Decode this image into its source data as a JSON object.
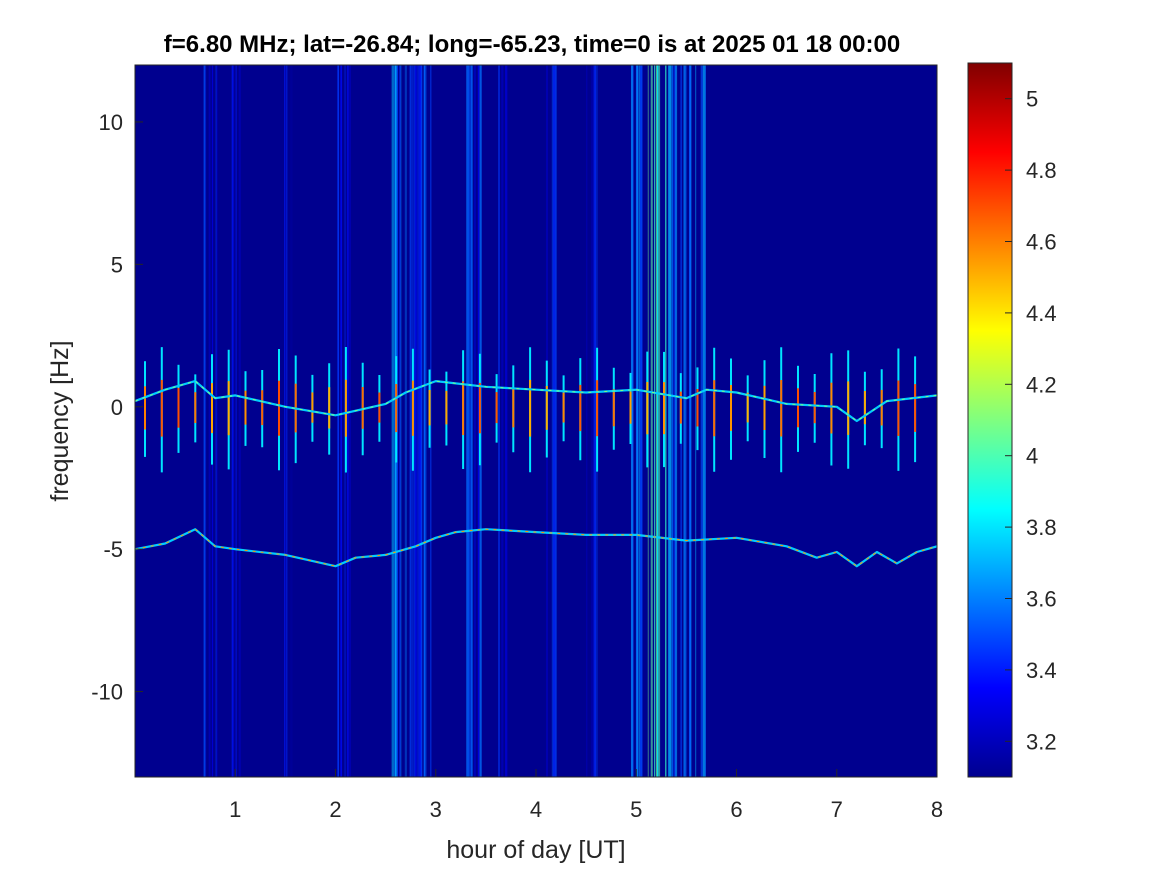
{
  "chart_data": {
    "type": "heatmap",
    "title": "f=6.80 MHz;  lat=-26.84; long=-65.23, time=0 is at 2025 01 18 00:00",
    "xlabel": "hour of day [UT]",
    "ylabel": "frequency [Hz]",
    "xlim": [
      0,
      8
    ],
    "ylim": [
      -13,
      12
    ],
    "x_ticks": [
      1,
      2,
      3,
      4,
      5,
      6,
      7,
      8
    ],
    "x_tick_labels": [
      "1",
      "2",
      "3",
      "4",
      "5",
      "6",
      "7",
      "8"
    ],
    "y_ticks": [
      10,
      5,
      0,
      -5,
      -10
    ],
    "y_tick_labels": [
      "10",
      "5",
      "0",
      "-5",
      "-10"
    ],
    "colorbar": {
      "colormap": "jet",
      "clim": [
        3.1,
        5.1
      ],
      "ticks": [
        5,
        4.8,
        4.6,
        4.4,
        4.2,
        4,
        3.8,
        3.6,
        3.4,
        3.2
      ],
      "tick_labels": [
        "5",
        "4.8",
        "4.6",
        "4.4",
        "4.2",
        "4",
        "3.8",
        "3.6",
        "3.4",
        "3.2"
      ]
    },
    "background_color": "#00008f",
    "noise_bands_hours": [
      {
        "start": 0.68,
        "end": 0.82,
        "level": 3.35
      },
      {
        "start": 0.95,
        "end": 1.05,
        "level": 3.3
      },
      {
        "start": 1.45,
        "end": 1.55,
        "level": 3.3
      },
      {
        "start": 2.0,
        "end": 2.15,
        "level": 3.35
      },
      {
        "start": 2.55,
        "end": 2.72,
        "level": 3.55
      },
      {
        "start": 2.72,
        "end": 3.0,
        "level": 3.45
      },
      {
        "start": 3.3,
        "end": 3.45,
        "level": 3.4
      },
      {
        "start": 3.6,
        "end": 3.7,
        "level": 3.35
      },
      {
        "start": 4.1,
        "end": 4.2,
        "level": 3.35
      },
      {
        "start": 4.5,
        "end": 4.6,
        "level": 3.35
      },
      {
        "start": 4.9,
        "end": 5.1,
        "level": 3.55
      },
      {
        "start": 5.1,
        "end": 5.3,
        "level": 3.9
      },
      {
        "start": 5.3,
        "end": 5.7,
        "level": 3.55
      }
    ],
    "doppler_traces": [
      {
        "x": [
          0,
          0.3,
          0.6,
          0.8,
          1.0,
          1.5,
          2.0,
          2.5,
          2.7,
          3.0,
          3.5,
          4.0,
          4.5,
          5.0,
          5.5,
          5.7,
          6.0,
          6.5,
          7.0,
          7.2,
          7.5,
          8.0
        ],
        "y": [
          0.2,
          0.6,
          0.9,
          0.3,
          0.4,
          0.0,
          -0.3,
          0.1,
          0.5,
          0.9,
          0.7,
          0.6,
          0.5,
          0.6,
          0.3,
          0.6,
          0.5,
          0.1,
          0.0,
          -0.5,
          0.2,
          0.4
        ]
      },
      {
        "x": [
          0,
          0.3,
          0.6,
          0.8,
          1.0,
          1.5,
          2.0,
          2.2,
          2.5,
          2.8,
          3.0,
          3.2,
          3.5,
          4.0,
          4.5,
          5.0,
          5.5,
          6.0,
          6.5,
          6.8,
          7.0,
          7.2,
          7.4,
          7.6,
          7.8,
          8.0
        ],
        "y": [
          -5.0,
          -4.8,
          -4.3,
          -4.9,
          -5.0,
          -5.2,
          -5.6,
          -5.3,
          -5.2,
          -4.9,
          -4.6,
          -4.4,
          -4.3,
          -4.4,
          -4.5,
          -4.5,
          -4.7,
          -4.6,
          -4.9,
          -5.3,
          -5.1,
          -5.6,
          -5.1,
          -5.5,
          -5.1,
          -4.9
        ]
      }
    ],
    "pulse_train": {
      "start_hour": 0.1,
      "end_hour": 7.9,
      "period_hours": 0.167,
      "center_hz": 0,
      "half_extent_hz": 2.0,
      "peak_level": 4.6
    }
  }
}
